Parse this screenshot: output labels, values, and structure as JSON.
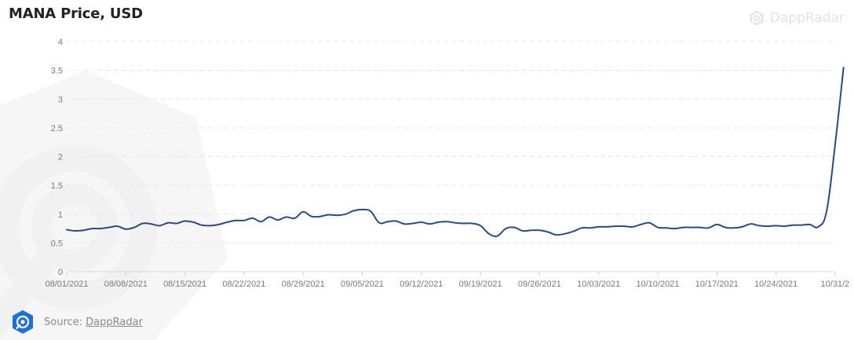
{
  "header": {
    "title": "MANA Price, USD",
    "brand": "DappRadar"
  },
  "footer": {
    "source_label": "Source:",
    "source_link": "DappRadar"
  },
  "icons": {
    "brand": "dappradar-logo-icon",
    "watermark": "dappradar-watermark-icon",
    "source": "dappradar-badge-icon"
  },
  "colors": {
    "line": "#2b4a85",
    "grid": "#e6e6e6",
    "tick": "#7a7a7a",
    "badge": "#1f6fd8",
    "watermark": "#f2f2f2"
  },
  "chart_data": {
    "type": "line",
    "title": "MANA Price, USD",
    "xlabel": "",
    "ylabel": "",
    "ylim": [
      0,
      4
    ],
    "yticks": [
      0,
      0.5,
      1,
      1.5,
      2,
      2.5,
      3,
      3.5,
      4
    ],
    "ytick_labels": [
      "0",
      "0.5",
      "1",
      "1.5",
      "2",
      "2.5",
      "3",
      "3.5",
      "4"
    ],
    "grid": "horizontal dashed",
    "xticks": [
      "08/01/2021",
      "08/08/2021",
      "08/15/2021",
      "08/22/2021",
      "08/29/2021",
      "09/05/2021",
      "09/12/2021",
      "09/19/2021",
      "09/26/2021",
      "10/03/2021",
      "10/10/2021",
      "10/17/2021",
      "10/24/2021",
      "10/31/2"
    ],
    "x": [
      "2021-08-01",
      "2021-08-02",
      "2021-08-03",
      "2021-08-04",
      "2021-08-05",
      "2021-08-06",
      "2021-08-07",
      "2021-08-08",
      "2021-08-09",
      "2021-08-10",
      "2021-08-11",
      "2021-08-12",
      "2021-08-13",
      "2021-08-14",
      "2021-08-15",
      "2021-08-16",
      "2021-08-17",
      "2021-08-18",
      "2021-08-19",
      "2021-08-20",
      "2021-08-21",
      "2021-08-22",
      "2021-08-23",
      "2021-08-24",
      "2021-08-25",
      "2021-08-26",
      "2021-08-27",
      "2021-08-28",
      "2021-08-29",
      "2021-08-30",
      "2021-08-31",
      "2021-09-01",
      "2021-09-02",
      "2021-09-03",
      "2021-09-04",
      "2021-09-05",
      "2021-09-06",
      "2021-09-07",
      "2021-09-08",
      "2021-09-09",
      "2021-09-10",
      "2021-09-11",
      "2021-09-12",
      "2021-09-13",
      "2021-09-14",
      "2021-09-15",
      "2021-09-16",
      "2021-09-17",
      "2021-09-18",
      "2021-09-19",
      "2021-09-20",
      "2021-09-21",
      "2021-09-22",
      "2021-09-23",
      "2021-09-24",
      "2021-09-25",
      "2021-09-26",
      "2021-09-27",
      "2021-09-28",
      "2021-09-29",
      "2021-09-30",
      "2021-10-01",
      "2021-10-02",
      "2021-10-03",
      "2021-10-04",
      "2021-10-05",
      "2021-10-06",
      "2021-10-07",
      "2021-10-08",
      "2021-10-09",
      "2021-10-10",
      "2021-10-11",
      "2021-10-12",
      "2021-10-13",
      "2021-10-14",
      "2021-10-15",
      "2021-10-16",
      "2021-10-17",
      "2021-10-18",
      "2021-10-19",
      "2021-10-20",
      "2021-10-21",
      "2021-10-22",
      "2021-10-23",
      "2021-10-24",
      "2021-10-25",
      "2021-10-26",
      "2021-10-27",
      "2021-10-28",
      "2021-10-29",
      "2021-10-30",
      "2021-10-31",
      "2021-11-01"
    ],
    "series": [
      {
        "values": [
          0.73,
          0.71,
          0.72,
          0.75,
          0.75,
          0.77,
          0.79,
          0.74,
          0.77,
          0.84,
          0.83,
          0.8,
          0.85,
          0.84,
          0.88,
          0.86,
          0.81,
          0.8,
          0.82,
          0.86,
          0.89,
          0.89,
          0.93,
          0.87,
          0.95,
          0.9,
          0.95,
          0.93,
          1.04,
          0.96,
          0.96,
          0.99,
          0.98,
          1.0,
          1.06,
          1.08,
          1.05,
          0.85,
          0.87,
          0.88,
          0.83,
          0.84,
          0.86,
          0.83,
          0.86,
          0.87,
          0.85,
          0.84,
          0.84,
          0.8,
          0.66,
          0.62,
          0.75,
          0.77,
          0.71,
          0.72,
          0.72,
          0.69,
          0.64,
          0.66,
          0.7,
          0.76,
          0.76,
          0.78,
          0.78,
          0.79,
          0.79,
          0.78,
          0.82,
          0.85,
          0.77,
          0.76,
          0.75,
          0.77,
          0.77,
          0.77,
          0.76,
          0.82,
          0.77,
          0.76,
          0.78,
          0.83,
          0.8,
          0.79,
          0.8,
          0.79,
          0.81,
          0.81,
          0.82,
          0.78,
          1.05,
          2.2,
          3.55
        ]
      }
    ]
  }
}
